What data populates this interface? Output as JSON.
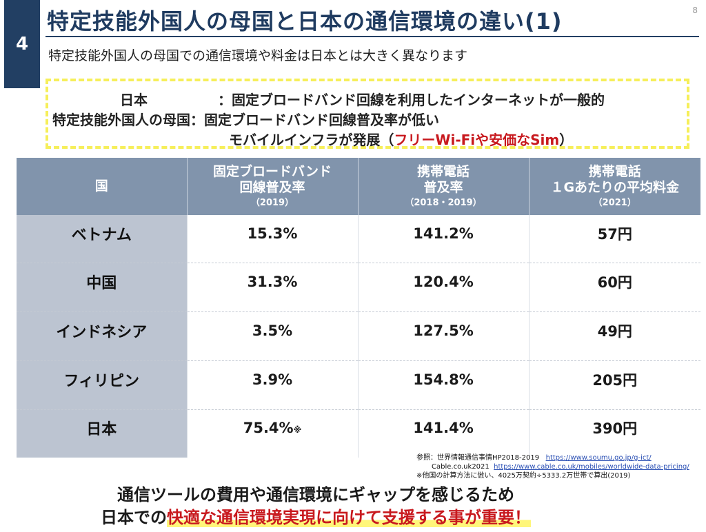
{
  "header": {
    "slide_number": "4",
    "title": "特定技能外国人の母国と日本の通信環境の違い(1)",
    "page_number": "8",
    "subtitle": "特定技能外国人の母国での通信環境や料金は日本とは大きく異なります"
  },
  "note": {
    "line1_label": "日本",
    "line1_sep": "：",
    "line1_text": "固定ブロードバンド回線を利用したインターネットが一般的",
    "line2_label": "特定技能外国人の母国：",
    "line2_text": "固定ブロードバンド回線普及率が低い",
    "line3_text_before": "モバイルインフラが発展（",
    "line3_text_red": "フリーWi-Fiや安価なSim",
    "line3_text_after": "）"
  },
  "table": {
    "headers": [
      {
        "line1": "国",
        "line2": "",
        "year": ""
      },
      {
        "line1": "固定ブロードバンド",
        "line2": "回線普及率",
        "year": "（2019）"
      },
      {
        "line1": "携帯電話",
        "line2": "普及率",
        "year": "（2018・2019）"
      },
      {
        "line1": "携帯電話",
        "line2": "１Gあたりの平均料金",
        "year": "（2021）"
      }
    ],
    "rows": [
      {
        "country": "ベトナム",
        "broadband": "15.3%",
        "mobile": "141.2%",
        "price": "57円"
      },
      {
        "country": "中国",
        "broadband": "31.3%",
        "mobile": "120.4%",
        "price": "60円"
      },
      {
        "country": "インドネシア",
        "broadband": "3.5%",
        "mobile": "127.5%",
        "price": "49円"
      },
      {
        "country": "フィリピン",
        "broadband": "3.9%",
        "mobile": "154.8%",
        "price": "205円"
      },
      {
        "country": "日本",
        "broadband": "75.4%",
        "broadband_mark": "※",
        "mobile": "141.4%",
        "price": "390円"
      }
    ]
  },
  "references": {
    "line1_label": "参照：世界情報通信事情HP2018-2019",
    "line1_url": "https://www.soumu.go.jp/g-ict/",
    "line2_label": "Cable.co.uk2021",
    "line2_url": "https://www.cable.co.uk/mobiles/worldwide-data-pricing/",
    "line3": "※他国の計算方法に倣い、4025万契約÷5333.2万世帯で算出(2019)"
  },
  "conclusion": {
    "line1": "通信ツールの費用や通信環境にギャップを感じるため",
    "line2_before": "日本での",
    "line2_highlight": "快適な通信環境実現に向けて支援する事が重要！"
  }
}
